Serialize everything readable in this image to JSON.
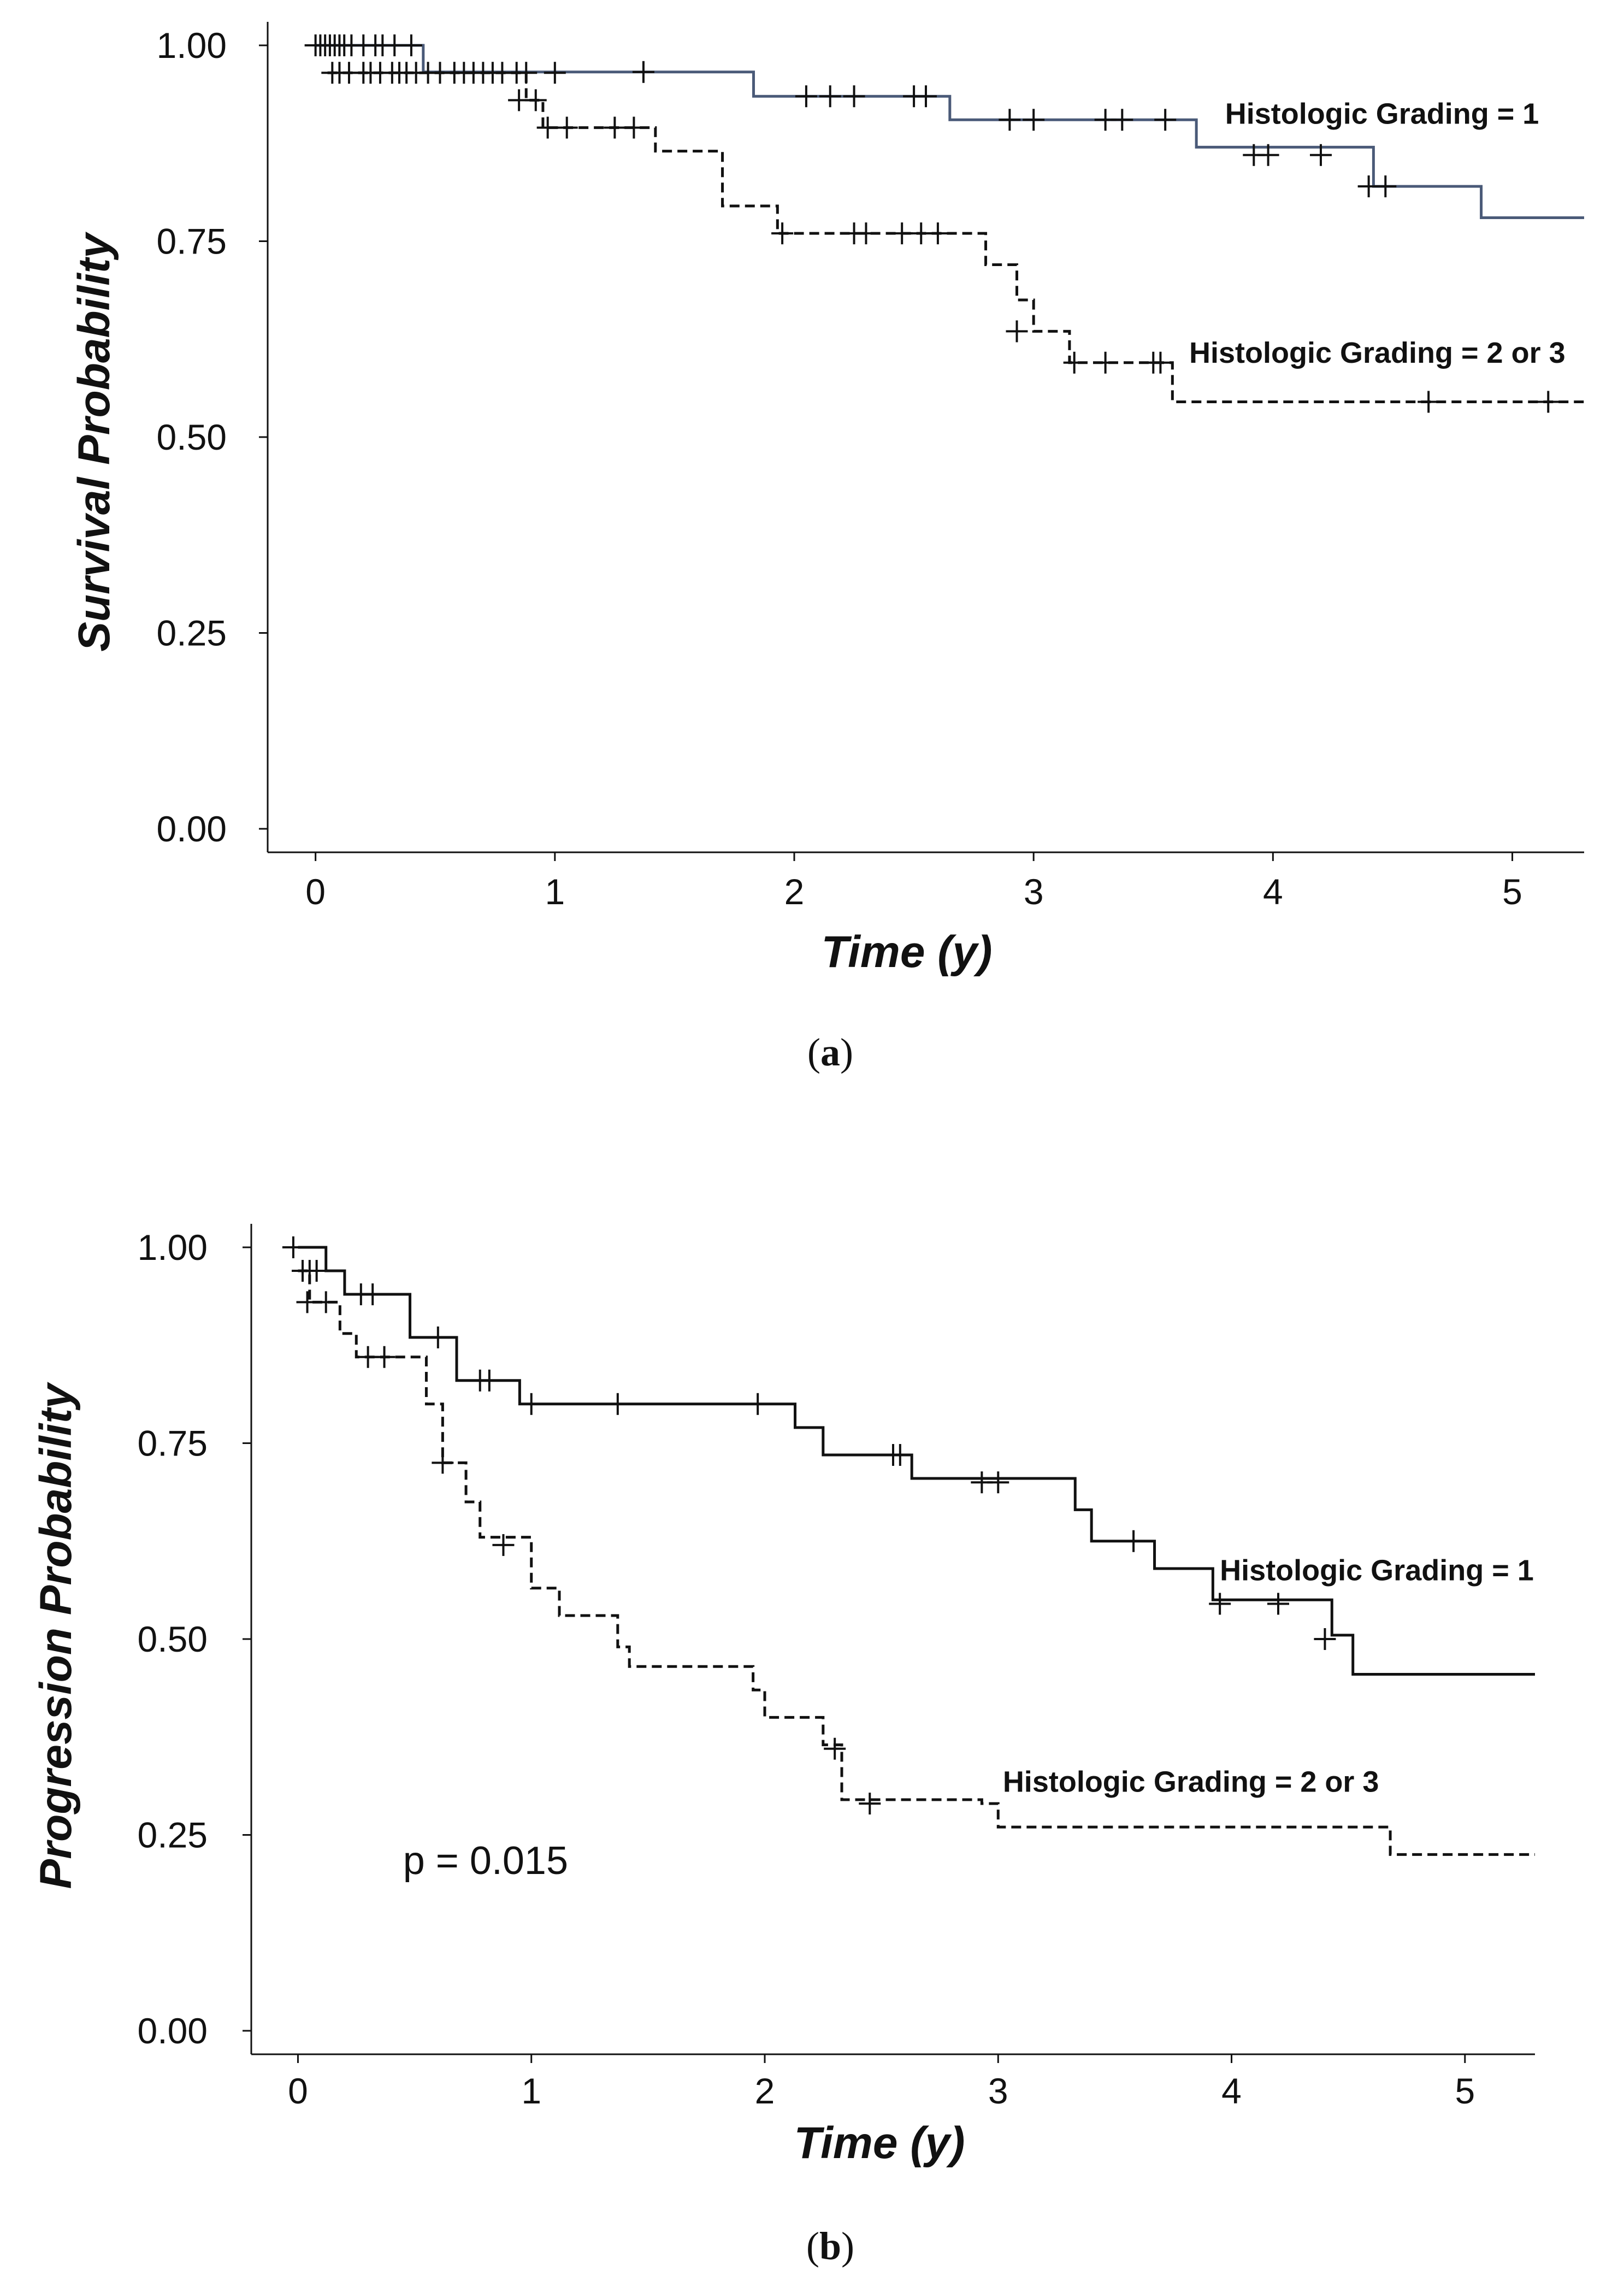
{
  "chart_data": [
    {
      "type": "line",
      "panel": "a",
      "caption_letter": "a",
      "title": "",
      "xlabel": "Time (y)",
      "ylabel": "Survival Probability",
      "xlim": [
        -0.2,
        5.3
      ],
      "ylim": [
        -0.03,
        1.03
      ],
      "xticks": [
        0,
        1,
        2,
        3,
        4,
        5
      ],
      "yticks": [
        0,
        0.25,
        0.5,
        0.75,
        1
      ],
      "ytick_labels": [
        "0.00",
        "0.25",
        "0.50",
        "0.75",
        "1.00"
      ],
      "grid": false,
      "series": [
        {
          "name": "Histologic Grading = 1",
          "label": "Histologic Grading = 1",
          "color": "#4a5a78",
          "dash": false,
          "steps": [
            [
              0,
              1.0
            ],
            [
              0.45,
              0.966
            ],
            [
              1.83,
              0.935
            ],
            [
              2.65,
              0.905
            ],
            [
              3.68,
              0.87
            ],
            [
              4.42,
              0.82
            ],
            [
              4.87,
              0.78
            ],
            [
              5.3,
              0.78
            ]
          ],
          "censor": [
            [
              0.0,
              1.0
            ],
            [
              0.02,
              1.0
            ],
            [
              0.04,
              1.0
            ],
            [
              0.06,
              1.0
            ],
            [
              0.08,
              1.0
            ],
            [
              0.1,
              1.0
            ],
            [
              0.12,
              1.0
            ],
            [
              0.15,
              1.0
            ],
            [
              0.2,
              1.0
            ],
            [
              0.25,
              1.0
            ],
            [
              0.28,
              1.0
            ],
            [
              0.33,
              1.0
            ],
            [
              0.4,
              1.0
            ],
            [
              1.37,
              0.966
            ],
            [
              2.05,
              0.935
            ],
            [
              2.15,
              0.935
            ],
            [
              2.25,
              0.935
            ],
            [
              2.5,
              0.935
            ],
            [
              2.55,
              0.935
            ],
            [
              2.9,
              0.905
            ],
            [
              3.0,
              0.905
            ],
            [
              3.3,
              0.905
            ],
            [
              3.37,
              0.905
            ],
            [
              3.55,
              0.905
            ],
            [
              3.92,
              0.86
            ],
            [
              3.98,
              0.86
            ],
            [
              4.2,
              0.86
            ],
            [
              4.4,
              0.82
            ],
            [
              4.47,
              0.82
            ]
          ],
          "label_anchor": [
            3.8,
            0.9
          ]
        },
        {
          "name": "Histologic Grading = 2 or 3",
          "label": "Histologic Grading = 2 or 3",
          "color": "#111111",
          "dash": true,
          "steps": [
            [
              0.05,
              0.965
            ],
            [
              0.88,
              0.93
            ],
            [
              0.95,
              0.895
            ],
            [
              1.42,
              0.865
            ],
            [
              1.7,
              0.795
            ],
            [
              1.93,
              0.76
            ],
            [
              2.8,
              0.72
            ],
            [
              2.93,
              0.675
            ],
            [
              3.0,
              0.635
            ],
            [
              3.15,
              0.595
            ],
            [
              3.58,
              0.545
            ],
            [
              5.3,
              0.545
            ]
          ],
          "censor": [
            [
              0.07,
              0.965
            ],
            [
              0.1,
              0.965
            ],
            [
              0.14,
              0.965
            ],
            [
              0.2,
              0.965
            ],
            [
              0.23,
              0.965
            ],
            [
              0.27,
              0.965
            ],
            [
              0.32,
              0.965
            ],
            [
              0.35,
              0.965
            ],
            [
              0.38,
              0.965
            ],
            [
              0.42,
              0.965
            ],
            [
              0.47,
              0.965
            ],
            [
              0.52,
              0.965
            ],
            [
              0.58,
              0.965
            ],
            [
              0.62,
              0.965
            ],
            [
              0.66,
              0.965
            ],
            [
              0.7,
              0.965
            ],
            [
              0.74,
              0.965
            ],
            [
              0.78,
              0.965
            ],
            [
              0.84,
              0.965
            ],
            [
              0.88,
              0.965
            ],
            [
              1.0,
              0.965
            ],
            [
              0.85,
              0.93
            ],
            [
              0.92,
              0.93
            ],
            [
              0.97,
              0.895
            ],
            [
              1.05,
              0.895
            ],
            [
              1.25,
              0.895
            ],
            [
              1.33,
              0.895
            ],
            [
              1.95,
              0.76
            ],
            [
              2.25,
              0.76
            ],
            [
              2.3,
              0.76
            ],
            [
              2.45,
              0.76
            ],
            [
              2.53,
              0.76
            ],
            [
              2.6,
              0.76
            ],
            [
              2.93,
              0.635
            ],
            [
              3.17,
              0.595
            ],
            [
              3.3,
              0.595
            ],
            [
              3.5,
              0.595
            ],
            [
              3.53,
              0.595
            ],
            [
              4.65,
              0.545
            ],
            [
              5.15,
              0.545
            ]
          ],
          "label_anchor": [
            3.65,
            0.595
          ]
        }
      ]
    },
    {
      "type": "line",
      "panel": "b",
      "caption_letter": "b",
      "title": "",
      "xlabel": "Time (y)",
      "ylabel": "Progression Probability",
      "annotation": "p = 0.015",
      "annotation_anchor": [
        0.45,
        0.2
      ],
      "xlim": [
        -0.2,
        5.3
      ],
      "ylim": [
        -0.03,
        1.03
      ],
      "xticks": [
        0,
        1,
        2,
        3,
        4,
        5
      ],
      "yticks": [
        0,
        0.25,
        0.5,
        0.75,
        1
      ],
      "ytick_labels": [
        "0.00",
        "0.25",
        "0.50",
        "0.75",
        "1.00"
      ],
      "grid": false,
      "series": [
        {
          "name": "Histologic Grading = 1",
          "label": "Histologic Grading = 1",
          "color": "#111111",
          "dash": false,
          "steps": [
            [
              0.0,
              1.0
            ],
            [
              0.12,
              0.97
            ],
            [
              0.2,
              0.94
            ],
            [
              0.48,
              0.885
            ],
            [
              0.68,
              0.83
            ],
            [
              0.95,
              0.8
            ],
            [
              2.13,
              0.77
            ],
            [
              2.25,
              0.735
            ],
            [
              2.63,
              0.705
            ],
            [
              3.33,
              0.665
            ],
            [
              3.4,
              0.625
            ],
            [
              3.67,
              0.59
            ],
            [
              3.92,
              0.55
            ],
            [
              4.43,
              0.505
            ],
            [
              4.52,
              0.455
            ],
            [
              5.3,
              0.455
            ]
          ],
          "censor": [
            [
              -0.02,
              1.0
            ],
            [
              0.05,
              0.97
            ],
            [
              0.08,
              0.97
            ],
            [
              0.27,
              0.94
            ],
            [
              0.32,
              0.94
            ],
            [
              0.6,
              0.885
            ],
            [
              0.78,
              0.83
            ],
            [
              0.82,
              0.83
            ],
            [
              1.0,
              0.8
            ],
            [
              1.37,
              0.8
            ],
            [
              1.97,
              0.8
            ],
            [
              2.55,
              0.735
            ],
            [
              2.58,
              0.735
            ],
            [
              2.93,
              0.7
            ],
            [
              3.0,
              0.7
            ],
            [
              3.58,
              0.625
            ],
            [
              3.95,
              0.545
            ],
            [
              4.2,
              0.545
            ],
            [
              4.4,
              0.5
            ]
          ],
          "label_anchor": [
            3.95,
            0.575
          ]
        },
        {
          "name": "Histologic Grading = 2 or 3",
          "label": "Histologic Grading = 2 or 3",
          "color": "#111111",
          "dash": true,
          "steps": [
            [
              0.0,
              0.97
            ],
            [
              0.05,
              0.93
            ],
            [
              0.18,
              0.89
            ],
            [
              0.25,
              0.86
            ],
            [
              0.55,
              0.8
            ],
            [
              0.62,
              0.725
            ],
            [
              0.72,
              0.675
            ],
            [
              0.78,
              0.63
            ],
            [
              1.0,
              0.565
            ],
            [
              1.12,
              0.53
            ],
            [
              1.37,
              0.49
            ],
            [
              1.42,
              0.465
            ],
            [
              1.95,
              0.435
            ],
            [
              2.0,
              0.4
            ],
            [
              2.25,
              0.365
            ],
            [
              2.33,
              0.295
            ],
            [
              2.93,
              0.29
            ],
            [
              3.0,
              0.26
            ],
            [
              4.68,
              0.225
            ],
            [
              5.3,
              0.225
            ]
          ],
          "censor": [
            [
              0.02,
              0.97
            ],
            [
              0.04,
              0.93
            ],
            [
              0.12,
              0.93
            ],
            [
              0.3,
              0.86
            ],
            [
              0.37,
              0.86
            ],
            [
              0.62,
              0.725
            ],
            [
              0.88,
              0.62
            ],
            [
              2.3,
              0.36
            ],
            [
              2.45,
              0.29
            ]
          ],
          "label_anchor": [
            3.02,
            0.305
          ]
        }
      ]
    }
  ]
}
